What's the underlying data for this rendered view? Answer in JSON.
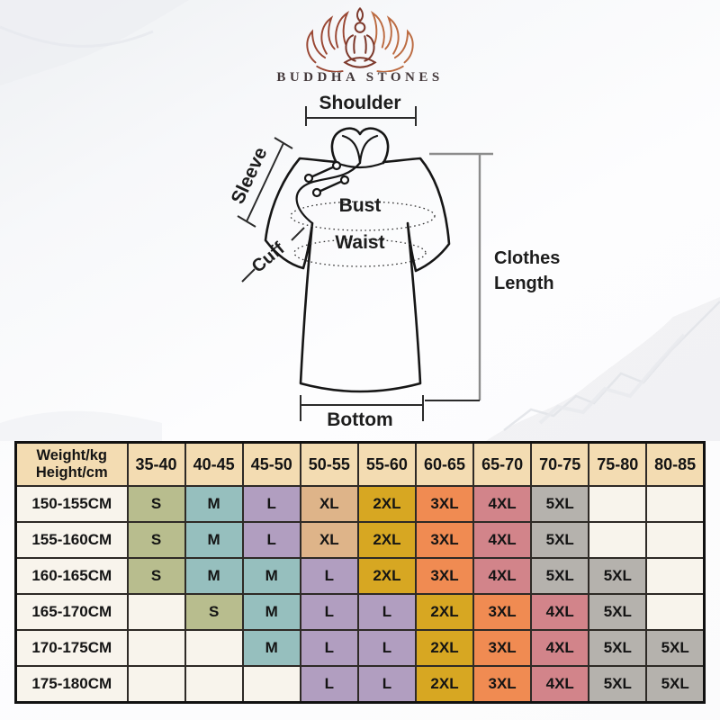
{
  "brand": {
    "name": "BUDDHA STONES",
    "logo_icon": "lotus-meditation-icon"
  },
  "garment_diagram": {
    "labels": {
      "shoulder": "Shoulder",
      "sleeve": "Sleeve",
      "cuff": "Cuff",
      "bust": "Bust",
      "waist": "Waist",
      "clothes_line1": "Clothes",
      "clothes_line2": "Length",
      "bottom": "Bottom"
    }
  },
  "size_chart": {
    "corner": {
      "line1": "Weight/kg",
      "line2": "Height/cm"
    },
    "weight_columns": [
      "35-40",
      "40-45",
      "45-50",
      "50-55",
      "55-60",
      "60-65",
      "65-70",
      "70-75",
      "75-80",
      "80-85"
    ],
    "header_bg": "#f3dcb2",
    "label_bg": "#f8f4ec",
    "empty_bg": "#f8f4ec",
    "size_colors": {
      "S": "#b8bd8e",
      "M": "#96bfbe",
      "L": "#b19ec0",
      "XL": "#deb489",
      "2XL": "#d7a722",
      "3XL": "#f08b52",
      "4XL": "#d2848a",
      "5XL": "#b5b2ad"
    },
    "rows": [
      {
        "height": "150-155CM",
        "sizes": [
          "S",
          "M",
          "L",
          "XL",
          "2XL",
          "3XL",
          "4XL",
          "5XL",
          "",
          ""
        ]
      },
      {
        "height": "155-160CM",
        "sizes": [
          "S",
          "M",
          "L",
          "XL",
          "2XL",
          "3XL",
          "4XL",
          "5XL",
          "",
          ""
        ]
      },
      {
        "height": "160-165CM",
        "sizes": [
          "S",
          "M",
          "M",
          "L",
          "2XL",
          "3XL",
          "4XL",
          "5XL",
          "5XL",
          ""
        ]
      },
      {
        "height": "165-170CM",
        "sizes": [
          "",
          "S",
          "M",
          "L",
          "L",
          "2XL",
          "3XL",
          "4XL",
          "5XL",
          ""
        ]
      },
      {
        "height": "170-175CM",
        "sizes": [
          "",
          "",
          "M",
          "L",
          "L",
          "2XL",
          "3XL",
          "4XL",
          "5XL",
          "5XL"
        ]
      },
      {
        "height": "175-180CM",
        "sizes": [
          "",
          "",
          "",
          "L",
          "L",
          "2XL",
          "3XL",
          "4XL",
          "5XL",
          "5XL"
        ]
      }
    ]
  }
}
